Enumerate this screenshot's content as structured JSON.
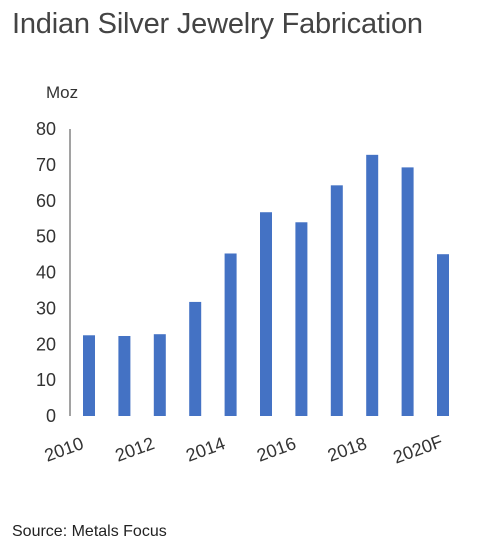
{
  "title": "Indian Silver Jewelry Fabrication",
  "source": "Source: Metals Focus",
  "chart_data": {
    "type": "bar",
    "title": "Indian Silver Jewelry Fabrication",
    "ylabel": "Moz",
    "xlabel": "",
    "categories": [
      "2010",
      "2011",
      "2012",
      "2013",
      "2014",
      "2015",
      "2016",
      "2017",
      "2018",
      "2019",
      "2020F"
    ],
    "x_tick_labels": [
      "2010",
      "2012",
      "2014",
      "2016",
      "2018",
      "2020F"
    ],
    "values": [
      22.5,
      22.3,
      22.8,
      31.8,
      45.3,
      56.8,
      54.0,
      64.3,
      72.8,
      69.3,
      45.1
    ],
    "ylim": [
      0,
      80
    ],
    "yticks": [
      0,
      10,
      20,
      30,
      40,
      50,
      60,
      70,
      80
    ],
    "grid": false,
    "bar_color": "#4472c4"
  }
}
